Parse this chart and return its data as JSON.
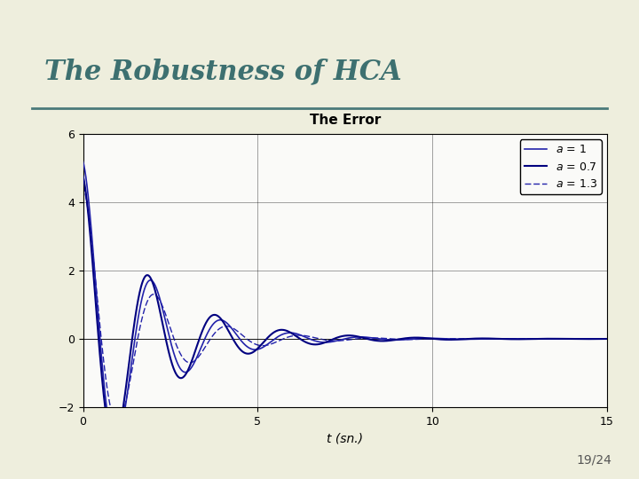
{
  "title": "The Robustness of HCA",
  "chart_title": "The Error",
  "xlabel": "t (sn.)",
  "xlim": [
    0,
    15
  ],
  "ylim": [
    -2,
    6
  ],
  "xticks": [
    0,
    5,
    10,
    15
  ],
  "yticks": [
    -2,
    0,
    2,
    4,
    6
  ],
  "slide_bg": "#e8e5d0",
  "panel_bg": "#fafaf8",
  "title_color": "#3d7070",
  "title_fontsize": 22,
  "chart_title_fontsize": 11,
  "line_color_a1": "#2222aa",
  "line_color_a07": "#000080",
  "line_color_a13": "#2222aa",
  "hrule_color": "#4a7a7a",
  "slide_number": "19/24",
  "t_end": 15,
  "dt": 0.01
}
